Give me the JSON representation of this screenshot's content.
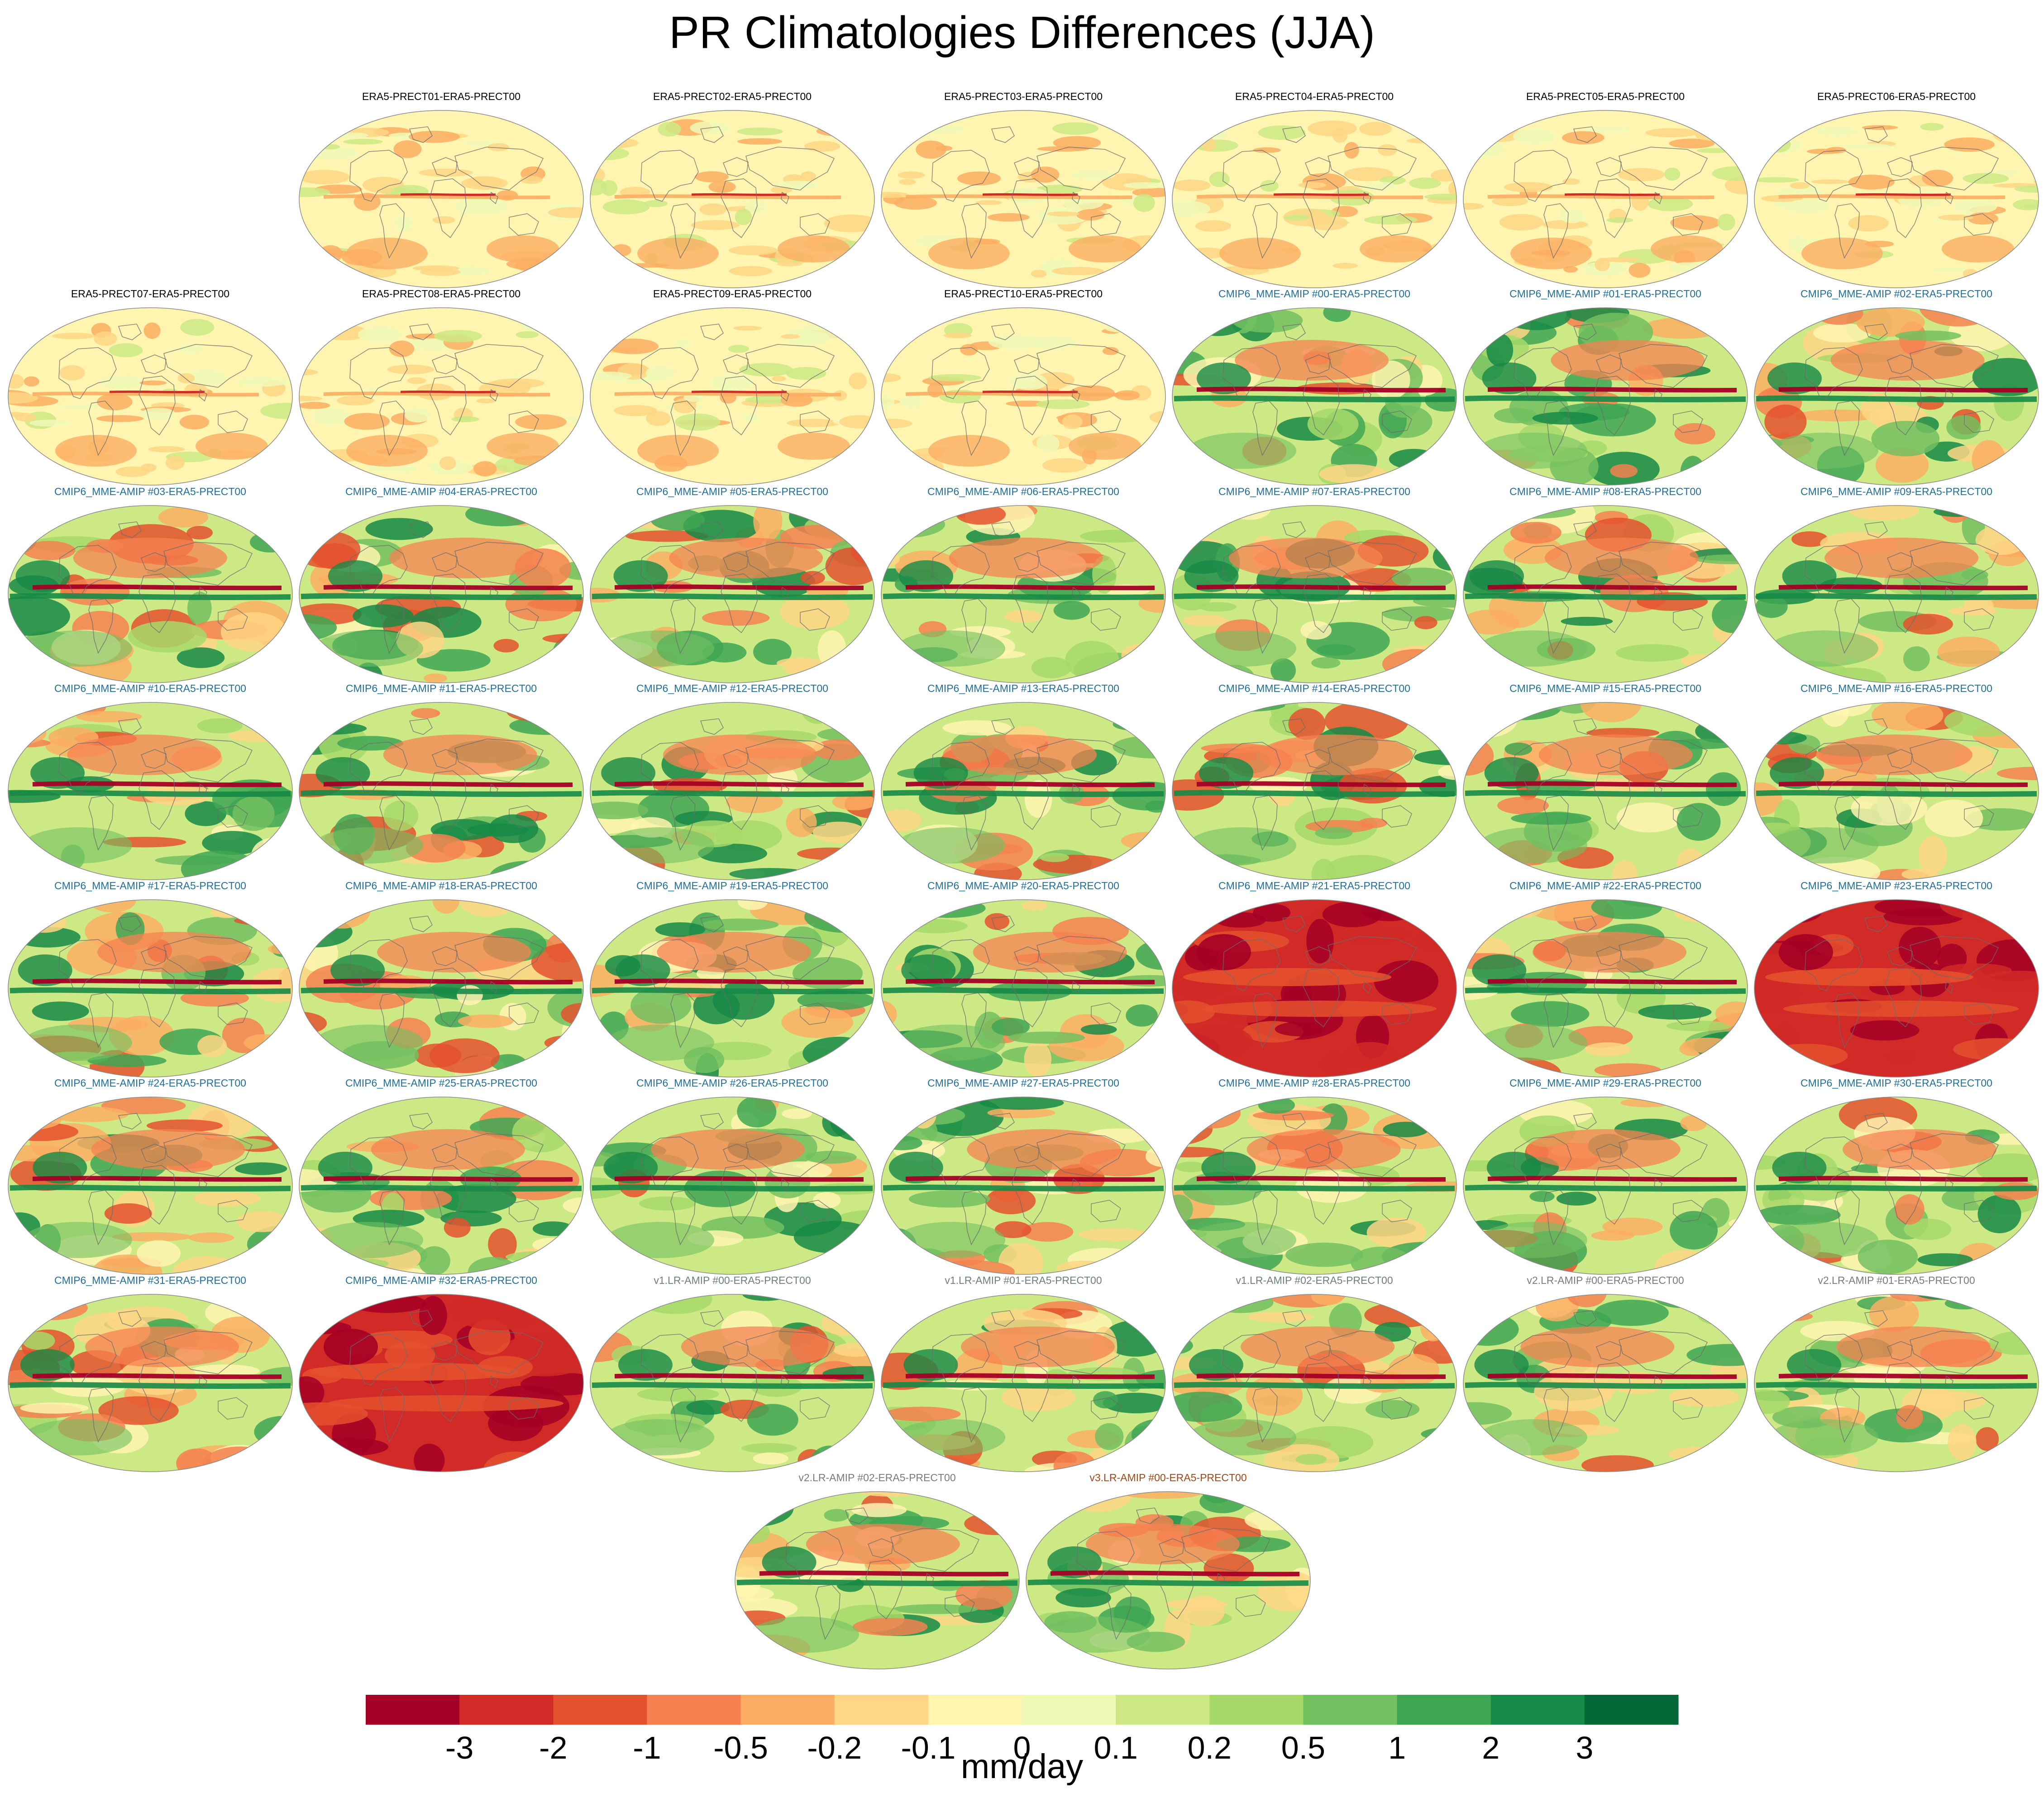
{
  "title": "PR Climatologies Differences (JJA)",
  "panels": [
    {
      "label": "ERA5-PRECT01-ERA5-PRECT00",
      "row": 0,
      "col": 1,
      "group": "era5",
      "bias": "weak"
    },
    {
      "label": "ERA5-PRECT02-ERA5-PRECT00",
      "row": 0,
      "col": 2,
      "group": "era5",
      "bias": "weak"
    },
    {
      "label": "ERA5-PRECT03-ERA5-PRECT00",
      "row": 0,
      "col": 3,
      "group": "era5",
      "bias": "weak"
    },
    {
      "label": "ERA5-PRECT04-ERA5-PRECT00",
      "row": 0,
      "col": 4,
      "group": "era5",
      "bias": "weak"
    },
    {
      "label": "ERA5-PRECT05-ERA5-PRECT00",
      "row": 0,
      "col": 5,
      "group": "era5",
      "bias": "weak"
    },
    {
      "label": "ERA5-PRECT06-ERA5-PRECT00",
      "row": 0,
      "col": 6,
      "group": "era5",
      "bias": "weak"
    },
    {
      "label": "ERA5-PRECT07-ERA5-PRECT00",
      "row": 1,
      "col": 0,
      "group": "era5",
      "bias": "weak"
    },
    {
      "label": "ERA5-PRECT08-ERA5-PRECT00",
      "row": 1,
      "col": 1,
      "group": "era5",
      "bias": "weak"
    },
    {
      "label": "ERA5-PRECT09-ERA5-PRECT00",
      "row": 1,
      "col": 2,
      "group": "era5",
      "bias": "weak"
    },
    {
      "label": "ERA5-PRECT10-ERA5-PRECT00",
      "row": 1,
      "col": 3,
      "group": "era5",
      "bias": "weak"
    },
    {
      "label": "CMIP6_MME-AMIP  #00-ERA5-PRECT00",
      "row": 1,
      "col": 4,
      "group": "cmip6",
      "bias": "mixed"
    },
    {
      "label": "CMIP6_MME-AMIP  #01-ERA5-PRECT00",
      "row": 1,
      "col": 5,
      "group": "cmip6",
      "bias": "mixed"
    },
    {
      "label": "CMIP6_MME-AMIP  #02-ERA5-PRECT00",
      "row": 1,
      "col": 6,
      "group": "cmip6",
      "bias": "mixed"
    },
    {
      "label": "CMIP6_MME-AMIP  #03-ERA5-PRECT00",
      "row": 2,
      "col": 0,
      "group": "cmip6",
      "bias": "mixed"
    },
    {
      "label": "CMIP6_MME-AMIP  #04-ERA5-PRECT00",
      "row": 2,
      "col": 1,
      "group": "cmip6",
      "bias": "mixed"
    },
    {
      "label": "CMIP6_MME-AMIP  #05-ERA5-PRECT00",
      "row": 2,
      "col": 2,
      "group": "cmip6",
      "bias": "mixed"
    },
    {
      "label": "CMIP6_MME-AMIP  #06-ERA5-PRECT00",
      "row": 2,
      "col": 3,
      "group": "cmip6",
      "bias": "mixed"
    },
    {
      "label": "CMIP6_MME-AMIP  #07-ERA5-PRECT00",
      "row": 2,
      "col": 4,
      "group": "cmip6",
      "bias": "mixed"
    },
    {
      "label": "CMIP6_MME-AMIP  #08-ERA5-PRECT00",
      "row": 2,
      "col": 5,
      "group": "cmip6",
      "bias": "mixed"
    },
    {
      "label": "CMIP6_MME-AMIP  #09-ERA5-PRECT00",
      "row": 2,
      "col": 6,
      "group": "cmip6",
      "bias": "mixed"
    },
    {
      "label": "CMIP6_MME-AMIP  #10-ERA5-PRECT00",
      "row": 3,
      "col": 0,
      "group": "cmip6",
      "bias": "mixed"
    },
    {
      "label": "CMIP6_MME-AMIP  #11-ERA5-PRECT00",
      "row": 3,
      "col": 1,
      "group": "cmip6",
      "bias": "mixed"
    },
    {
      "label": "CMIP6_MME-AMIP  #12-ERA5-PRECT00",
      "row": 3,
      "col": 2,
      "group": "cmip6",
      "bias": "mixed"
    },
    {
      "label": "CMIP6_MME-AMIP  #13-ERA5-PRECT00",
      "row": 3,
      "col": 3,
      "group": "cmip6",
      "bias": "mixed"
    },
    {
      "label": "CMIP6_MME-AMIP  #14-ERA5-PRECT00",
      "row": 3,
      "col": 4,
      "group": "cmip6",
      "bias": "mixed"
    },
    {
      "label": "CMIP6_MME-AMIP  #15-ERA5-PRECT00",
      "row": 3,
      "col": 5,
      "group": "cmip6",
      "bias": "mixed"
    },
    {
      "label": "CMIP6_MME-AMIP  #16-ERA5-PRECT00",
      "row": 3,
      "col": 6,
      "group": "cmip6",
      "bias": "mixed"
    },
    {
      "label": "CMIP6_MME-AMIP  #17-ERA5-PRECT00",
      "row": 4,
      "col": 0,
      "group": "cmip6",
      "bias": "mixed"
    },
    {
      "label": "CMIP6_MME-AMIP  #18-ERA5-PRECT00",
      "row": 4,
      "col": 1,
      "group": "cmip6",
      "bias": "mixed"
    },
    {
      "label": "CMIP6_MME-AMIP  #19-ERA5-PRECT00",
      "row": 4,
      "col": 2,
      "group": "cmip6",
      "bias": "mixed"
    },
    {
      "label": "CMIP6_MME-AMIP  #20-ERA5-PRECT00",
      "row": 4,
      "col": 3,
      "group": "cmip6",
      "bias": "mixed"
    },
    {
      "label": "CMIP6_MME-AMIP  #21-ERA5-PRECT00",
      "row": 4,
      "col": 4,
      "group": "cmip6",
      "bias": "dry"
    },
    {
      "label": "CMIP6_MME-AMIP  #22-ERA5-PRECT00",
      "row": 4,
      "col": 5,
      "group": "cmip6",
      "bias": "mixed"
    },
    {
      "label": "CMIP6_MME-AMIP  #23-ERA5-PRECT00",
      "row": 4,
      "col": 6,
      "group": "cmip6",
      "bias": "dry"
    },
    {
      "label": "CMIP6_MME-AMIP  #24-ERA5-PRECT00",
      "row": 5,
      "col": 0,
      "group": "cmip6",
      "bias": "mixed"
    },
    {
      "label": "CMIP6_MME-AMIP  #25-ERA5-PRECT00",
      "row": 5,
      "col": 1,
      "group": "cmip6",
      "bias": "mixed"
    },
    {
      "label": "CMIP6_MME-AMIP  #26-ERA5-PRECT00",
      "row": 5,
      "col": 2,
      "group": "cmip6",
      "bias": "mixed"
    },
    {
      "label": "CMIP6_MME-AMIP  #27-ERA5-PRECT00",
      "row": 5,
      "col": 3,
      "group": "cmip6",
      "bias": "mixed"
    },
    {
      "label": "CMIP6_MME-AMIP  #28-ERA5-PRECT00",
      "row": 5,
      "col": 4,
      "group": "cmip6",
      "bias": "mixed"
    },
    {
      "label": "CMIP6_MME-AMIP  #29-ERA5-PRECT00",
      "row": 5,
      "col": 5,
      "group": "cmip6",
      "bias": "mixed"
    },
    {
      "label": "CMIP6_MME-AMIP  #30-ERA5-PRECT00",
      "row": 5,
      "col": 6,
      "group": "cmip6",
      "bias": "mixed"
    },
    {
      "label": "CMIP6_MME-AMIP  #31-ERA5-PRECT00",
      "row": 6,
      "col": 0,
      "group": "cmip6",
      "bias": "mixed"
    },
    {
      "label": "CMIP6_MME-AMIP  #32-ERA5-PRECT00",
      "row": 6,
      "col": 1,
      "group": "cmip6",
      "bias": "dry"
    },
    {
      "label": "v1.LR-AMIP  #00-ERA5-PRECT00",
      "row": 6,
      "col": 2,
      "group": "v1",
      "bias": "mixed"
    },
    {
      "label": "v1.LR-AMIP  #01-ERA5-PRECT00",
      "row": 6,
      "col": 3,
      "group": "v1",
      "bias": "mixed"
    },
    {
      "label": "v1.LR-AMIP  #02-ERA5-PRECT00",
      "row": 6,
      "col": 4,
      "group": "v1",
      "bias": "mixed"
    },
    {
      "label": "v2.LR-AMIP  #00-ERA5-PRECT00",
      "row": 6,
      "col": 5,
      "group": "v2",
      "bias": "mixed"
    },
    {
      "label": "v2.LR-AMIP  #01-ERA5-PRECT00",
      "row": 6,
      "col": 6,
      "group": "v2",
      "bias": "mixed"
    },
    {
      "label": "v2.LR-AMIP  #02-ERA5-PRECT00",
      "row": 7,
      "col": 0,
      "group": "v2",
      "bias": "mixed"
    },
    {
      "label": "v3.LR-AMIP  #00-ERA5-PRECT00",
      "row": 7,
      "col": 1,
      "group": "v3",
      "bias": "mixed"
    }
  ],
  "group_colors": {
    "era5": "#000000",
    "cmip6": "#1f6f9a",
    "v1": "#6e7f78",
    "v2": "#7a7a7a",
    "v3": "#a0471a"
  },
  "colorbar": {
    "units": "mm/day",
    "tick_labels": [
      "-3",
      "-2",
      "-1",
      "-0.5",
      "-0.2",
      "-0.1",
      "0",
      "0.1",
      "0.2",
      "0.5",
      "1",
      "2",
      "3"
    ],
    "colors": [
      "#a50026",
      "#d12a27",
      "#e4512e",
      "#f58150",
      "#fbae63",
      "#fed685",
      "#fff5b0",
      "#f0f8b6",
      "#cce986",
      "#a7d96a",
      "#72c060",
      "#3fa654",
      "#168a46",
      "#006837"
    ]
  }
}
